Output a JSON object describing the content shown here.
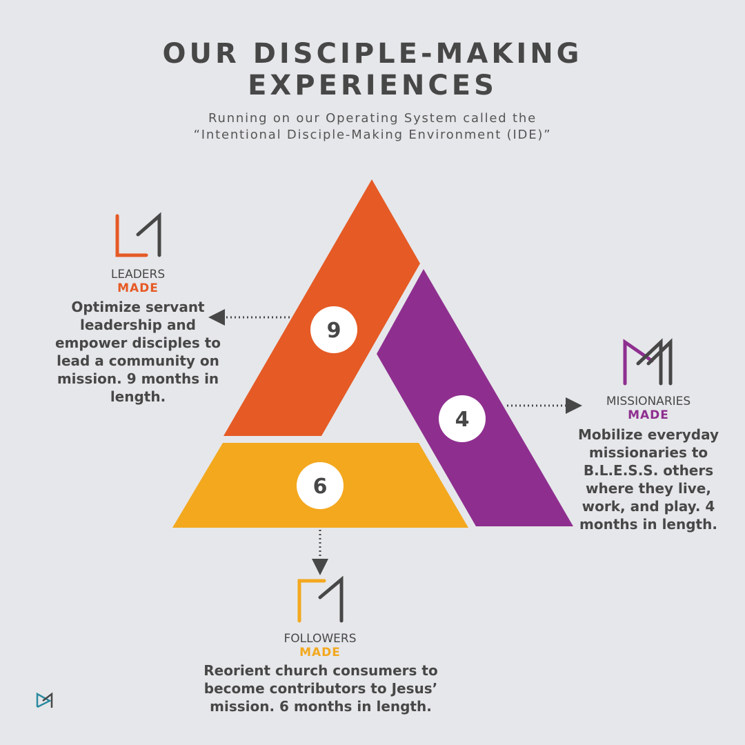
{
  "header": {
    "title_line1": "OUR DISCIPLE-MAKING",
    "title_line2": "EXPERIENCES",
    "subtitle_line1": "Running on our Operating System called the",
    "subtitle_line2": "“Intentional Disciple-Making Environment (IDE)”"
  },
  "colors": {
    "orange": "#e55a25",
    "purple": "#8e2f8f",
    "yellow": "#f3a81e",
    "text": "#474747",
    "background": "#e6e7ea"
  },
  "segments": [
    {
      "id": "leaders",
      "number": "9",
      "brand": "LEADERS",
      "made": "MADE",
      "description": "Optimize servant leadership and empower disciples to lead a community on mission. 9 months in length."
    },
    {
      "id": "missionaries",
      "number": "4",
      "brand": "MISSIONARIES",
      "made": "MADE",
      "description": "Mobilize everyday missionaries to B.L.E.S.S. others where they live, work, and play. 4 months in length."
    },
    {
      "id": "followers",
      "number": "6",
      "brand": "FOLLOWERS",
      "made": "MADE",
      "description": "Reorient church consumers to become contributors to Jesus’ mission. 6 months in length."
    }
  ]
}
